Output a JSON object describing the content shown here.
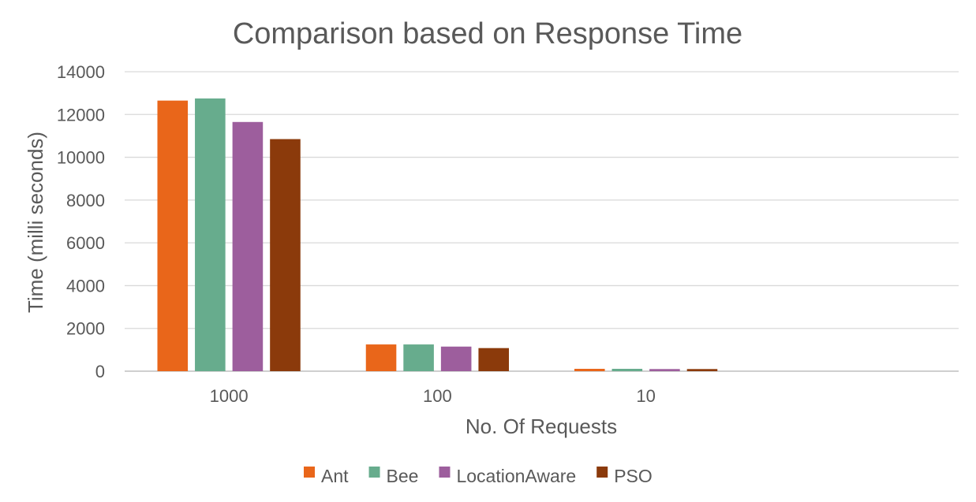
{
  "chart_data": {
    "type": "bar",
    "title": "Comparison based on Response Time",
    "xlabel": "No. Of Requests",
    "ylabel": "Time (milli seconds)",
    "categories": [
      "1000",
      "100",
      "10",
      ""
    ],
    "ylim": [
      0,
      14000
    ],
    "yticks": [
      0,
      2000,
      4000,
      6000,
      8000,
      10000,
      12000,
      14000
    ],
    "grid": true,
    "legend_position": "bottom",
    "series": [
      {
        "name": "Ant",
        "color": "#e9661a",
        "values": [
          12650,
          1250,
          110,
          null
        ]
      },
      {
        "name": "Bee",
        "color": "#67ac8d",
        "values": [
          12750,
          1250,
          110,
          null
        ]
      },
      {
        "name": "LocationAware",
        "color": "#9d5e9d",
        "values": [
          11650,
          1150,
          100,
          null
        ]
      },
      {
        "name": "PSO",
        "color": "#8b3a0b",
        "values": [
          10850,
          1080,
          100,
          null
        ]
      }
    ]
  }
}
